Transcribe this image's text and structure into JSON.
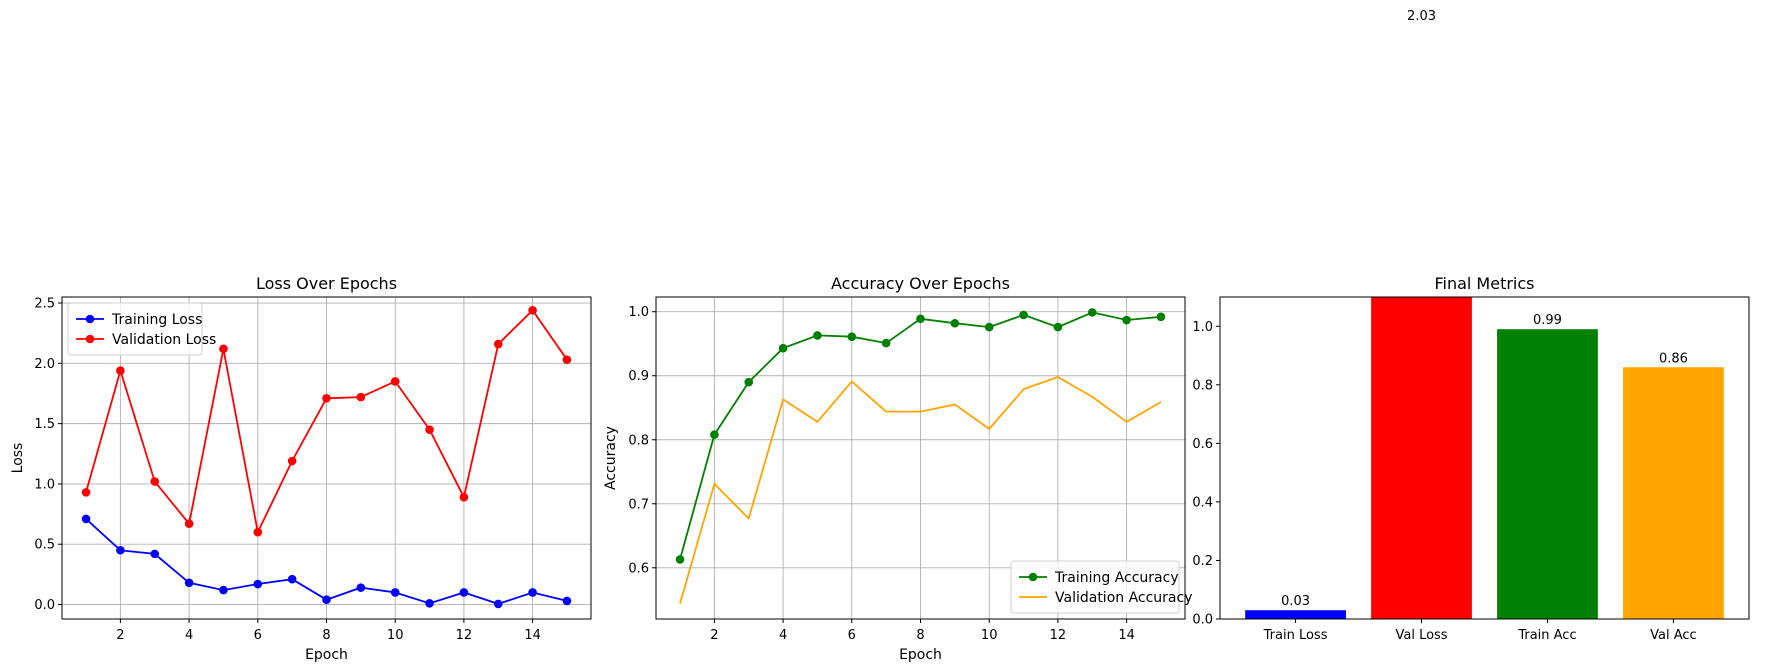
{
  "chart_data": [
    {
      "type": "line",
      "title": "Loss Over Epochs",
      "xlabel": "Epoch",
      "ylabel": "Loss",
      "xlim": [
        0.3,
        15.7
      ],
      "ylim": [
        -0.12,
        2.55
      ],
      "xticks": [
        2,
        4,
        6,
        8,
        10,
        12,
        14
      ],
      "xtick_labels": [
        "2",
        "4",
        "6",
        "8",
        "10",
        "12",
        "14"
      ],
      "yticks": [
        0.0,
        0.5,
        1.0,
        1.5,
        2.0,
        2.5
      ],
      "ytick_labels": [
        "0.0",
        "0.5",
        "1.0",
        "1.5",
        "2.0",
        "2.5"
      ],
      "grid": true,
      "legend": "upper-left",
      "x": [
        1,
        2,
        3,
        4,
        5,
        6,
        7,
        8,
        9,
        10,
        11,
        12,
        13,
        14,
        15
      ],
      "series": [
        {
          "name": "Training Loss",
          "color": "#0000ff",
          "marker": "circle",
          "values": [
            0.71,
            0.45,
            0.42,
            0.18,
            0.12,
            0.17,
            0.21,
            0.04,
            0.14,
            0.1,
            0.01,
            0.1,
            0.005,
            0.1,
            0.03
          ]
        },
        {
          "name": "Validation Loss",
          "color": "#ff0000",
          "marker": "circle",
          "values": [
            0.93,
            1.94,
            1.02,
            0.67,
            2.12,
            0.6,
            1.19,
            1.71,
            1.72,
            1.85,
            1.45,
            0.89,
            2.16,
            2.44,
            2.03
          ]
        }
      ]
    },
    {
      "type": "line",
      "title": "Accuracy Over Epochs",
      "xlabel": "Epoch",
      "ylabel": "Accuracy",
      "xlim": [
        0.3,
        15.7
      ],
      "ylim": [
        0.52,
        1.023
      ],
      "xticks": [
        2,
        4,
        6,
        8,
        10,
        12,
        14
      ],
      "xtick_labels": [
        "2",
        "4",
        "6",
        "8",
        "10",
        "12",
        "14"
      ],
      "yticks": [
        0.6,
        0.7,
        0.8,
        0.9,
        1.0
      ],
      "ytick_labels": [
        "0.6",
        "0.7",
        "0.8",
        "0.9",
        "1.0"
      ],
      "grid": true,
      "legend": "lower-right",
      "x": [
        1,
        2,
        3,
        4,
        5,
        6,
        7,
        8,
        9,
        10,
        11,
        12,
        13,
        14,
        15
      ],
      "series": [
        {
          "name": "Training Accuracy",
          "color": "#008000",
          "marker": "circle",
          "values": [
            0.613,
            0.808,
            0.89,
            0.943,
            0.963,
            0.961,
            0.951,
            0.989,
            0.982,
            0.976,
            0.995,
            0.976,
            0.999,
            0.987,
            0.992
          ]
        },
        {
          "name": "Validation Accuracy",
          "color": "#ffa500",
          "marker": "none",
          "values": [
            0.544,
            0.731,
            0.677,
            0.863,
            0.828,
            0.891,
            0.844,
            0.844,
            0.855,
            0.817,
            0.879,
            0.898,
            0.867,
            0.828,
            0.859
          ]
        }
      ]
    },
    {
      "type": "bar",
      "title": "Final Metrics",
      "xlabel": "",
      "ylabel": "",
      "ylim": [
        0,
        1.1
      ],
      "yticks": [
        0.0,
        0.2,
        0.4,
        0.6,
        0.8,
        1.0
      ],
      "ytick_labels": [
        "0.0",
        "0.2",
        "0.4",
        "0.6",
        "0.8",
        "1.0"
      ],
      "grid": false,
      "categories": [
        "Train Loss",
        "Val Loss",
        "Train Acc",
        "Val Acc"
      ],
      "values": [
        0.03,
        2.03,
        0.99,
        0.86
      ],
      "value_labels": [
        "0.03",
        "2.03",
        "0.99",
        "0.86"
      ],
      "colors": [
        "#0000ff",
        "#ff0000",
        "#008000",
        "#ffa500"
      ]
    }
  ]
}
